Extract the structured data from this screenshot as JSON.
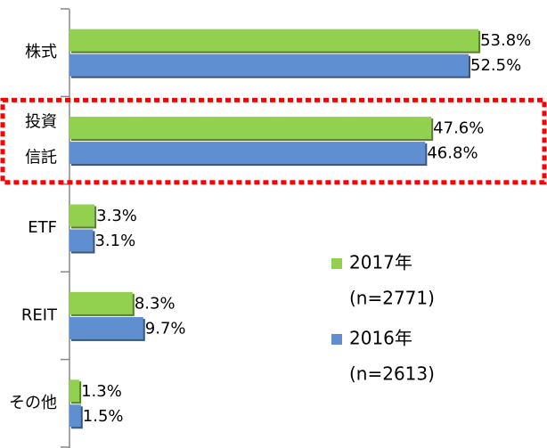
{
  "chart_data": {
    "type": "barh",
    "categories": [
      "株式",
      [
        "投資",
        "信託"
      ],
      "ETF",
      "REIT",
      "その他"
    ],
    "xlim": [
      0,
      60
    ],
    "series": [
      {
        "name": "2017年",
        "sample": "(n=2771)",
        "color": "#92d050",
        "values": [
          53.8,
          47.6,
          3.3,
          8.3,
          1.3
        ],
        "value_labels": [
          "53.8%",
          "47.6%",
          "3.3%",
          "8.3%",
          "1.3%"
        ]
      },
      {
        "name": "2016年",
        "sample": "(n=2613)",
        "color": "#5f8fd0",
        "values": [
          52.5,
          46.8,
          3.1,
          9.7,
          1.5
        ],
        "value_labels": [
          "52.5%",
          "46.8%",
          "3.1%",
          "9.7%",
          "1.5%"
        ]
      }
    ],
    "highlight_color": "#ff0000"
  }
}
